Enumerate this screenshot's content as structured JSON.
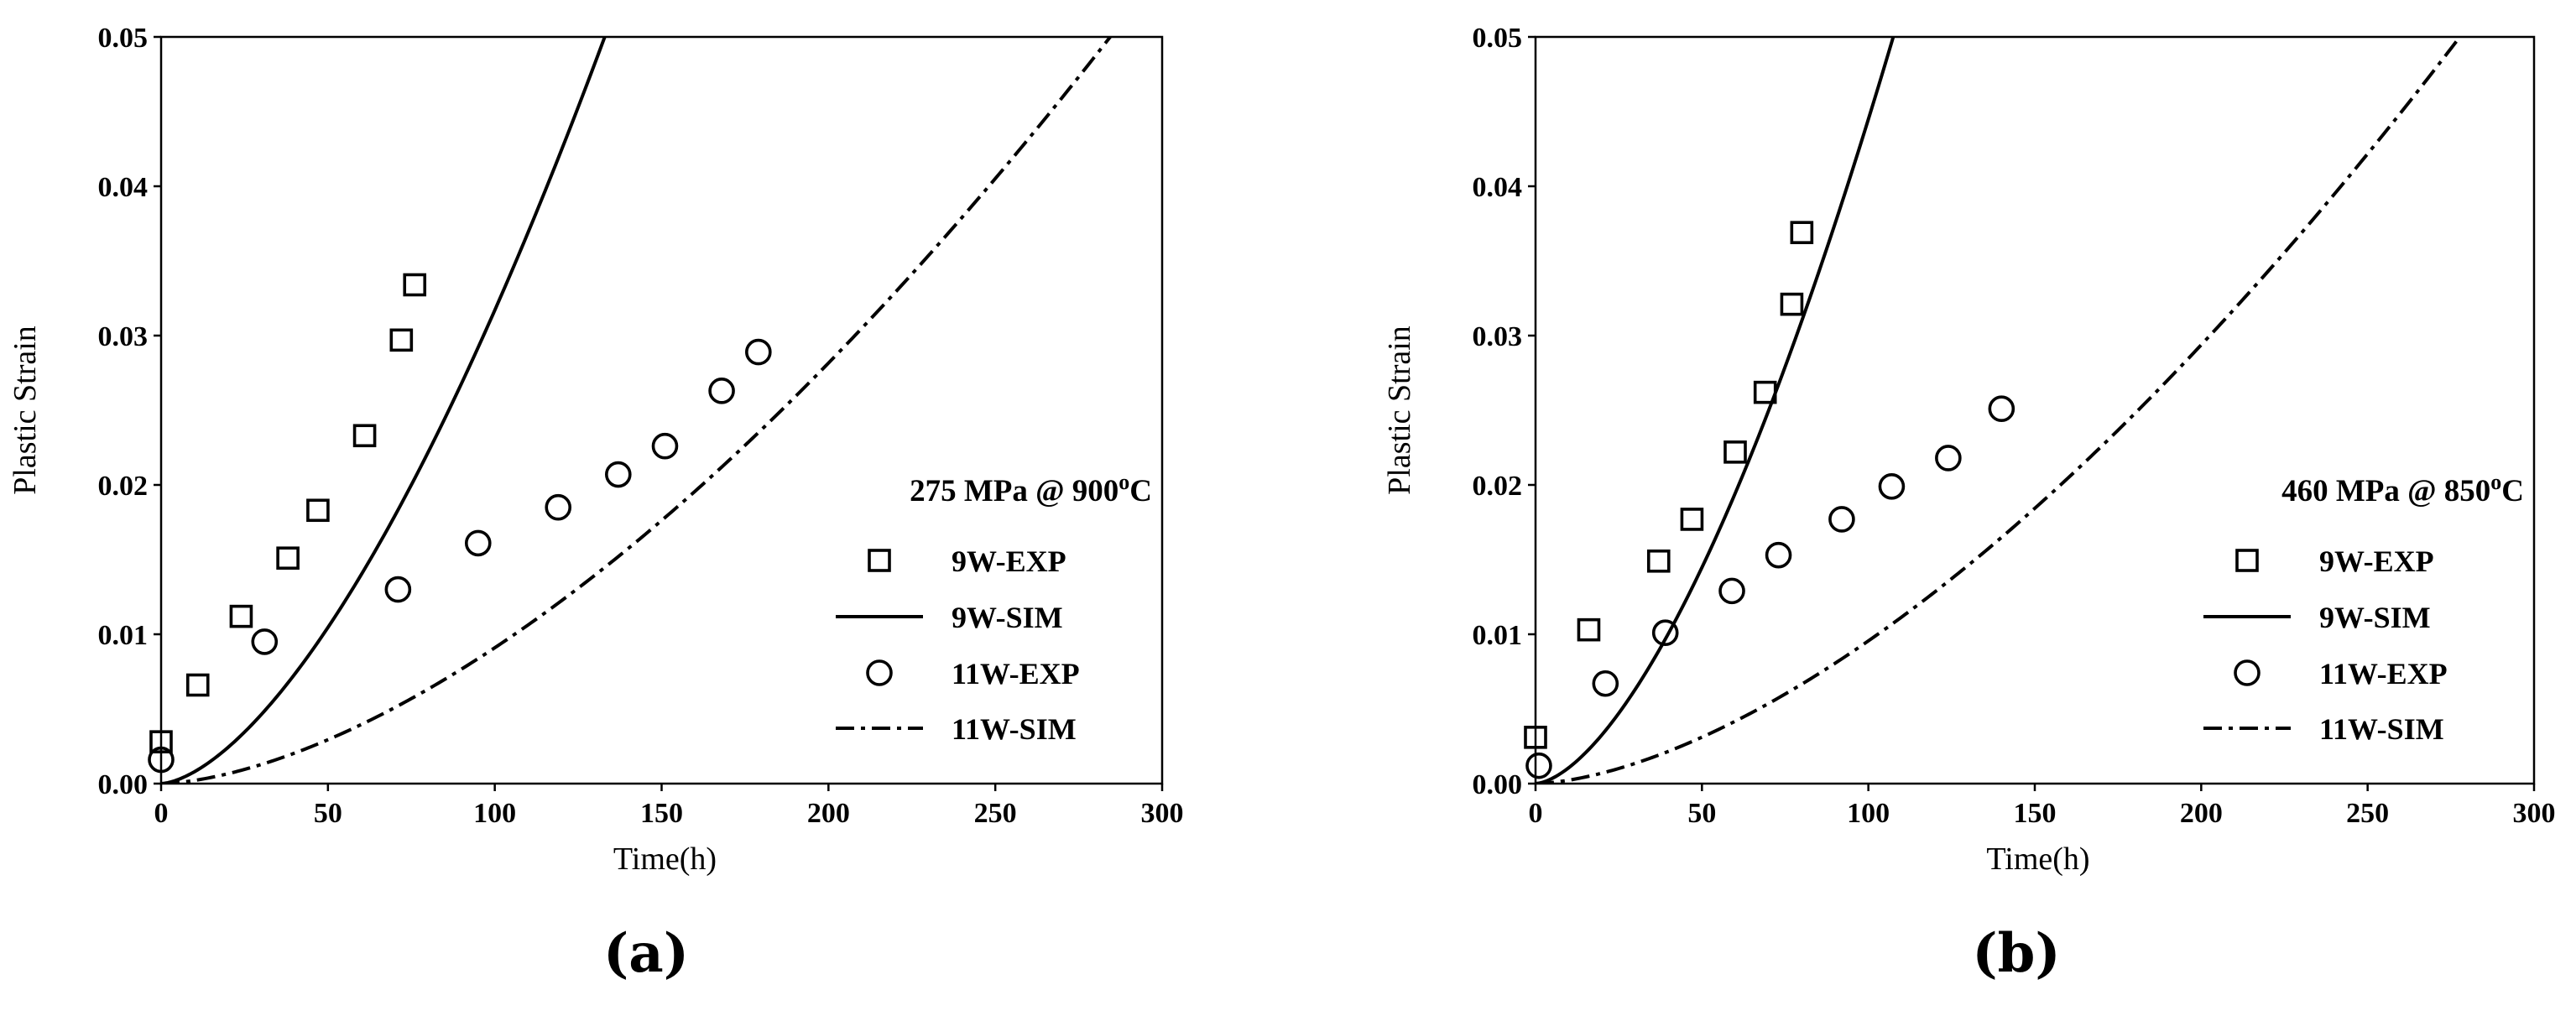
{
  "chart_data": [
    {
      "type": "scatter",
      "panel_label": "(a)",
      "title": "275 MPa @ 900",
      "title_sup": "o",
      "title_unit": "C",
      "xlabel": "Time(h)",
      "ylabel": "Plastic Strain",
      "xlim": [
        0,
        300
      ],
      "ylim": [
        0,
        0.05
      ],
      "xticks": [
        "0",
        "50",
        "100",
        "150",
        "200",
        "250",
        "300"
      ],
      "yticks": [
        "0.00",
        "0.01",
        "0.02",
        "0.03",
        "0.04",
        "0.05"
      ],
      "legend_position": "center-right",
      "series": [
        {
          "name": "9W-EXP",
          "kind": "marker",
          "marker": "square",
          "x": [
            0,
            11,
            24,
            38,
            47,
            61,
            72,
            76
          ],
          "y": [
            0.0028,
            0.0066,
            0.0112,
            0.0151,
            0.0183,
            0.0233,
            0.0297,
            0.0334
          ]
        },
        {
          "name": "9W-SIM",
          "kind": "line",
          "dash": "solid",
          "a": 2e-05,
          "n": 1.6,
          "x_max": 300
        },
        {
          "name": "11W-EXP",
          "kind": "marker",
          "marker": "circle",
          "x": [
            0,
            31,
            71,
            95,
            119,
            137,
            151,
            168,
            179
          ],
          "y": [
            0.0016,
            0.0095,
            0.013,
            0.0161,
            0.0185,
            0.0207,
            0.0226,
            0.0263,
            0.0289
          ]
        },
        {
          "name": "11W-SIM",
          "kind": "line",
          "dash": "dashdot",
          "a": 5e-06,
          "n": 1.63,
          "x_max": 300
        }
      ]
    },
    {
      "type": "scatter",
      "panel_label": "(b)",
      "title": "460 MPa @ 850",
      "title_sup": "o",
      "title_unit": "C",
      "xlabel": "Time(h)",
      "ylabel": "Plastic Strain",
      "xlim": [
        0,
        300
      ],
      "ylim": [
        0,
        0.05
      ],
      "xticks": [
        "0",
        "50",
        "100",
        "150",
        "200",
        "250",
        "300"
      ],
      "yticks": [
        "0.00",
        "0.01",
        "0.02",
        "0.03",
        "0.04",
        "0.05"
      ],
      "legend_position": "center-right",
      "series": [
        {
          "name": "9W-EXP",
          "kind": "marker",
          "marker": "square",
          "x": [
            0,
            16,
            37,
            47,
            60,
            69,
            77,
            80
          ],
          "y": [
            0.0031,
            0.0103,
            0.0149,
            0.0177,
            0.0222,
            0.0262,
            0.0321,
            0.0369
          ]
        },
        {
          "name": "9W-SIM",
          "kind": "line",
          "dash": "solid",
          "a": 2.56e-05,
          "n": 1.62,
          "x_max": 300
        },
        {
          "name": "11W-EXP",
          "kind": "marker",
          "marker": "circle",
          "x": [
            1,
            21,
            39,
            59,
            73,
            92,
            107,
            124,
            140
          ],
          "y": [
            0.0012,
            0.0067,
            0.0101,
            0.0129,
            0.0153,
            0.0177,
            0.0199,
            0.0218,
            0.0251
          ]
        },
        {
          "name": "11W-SIM",
          "kind": "line",
          "dash": "dashdot",
          "a": 5.5e-06,
          "n": 1.62,
          "x_max": 300
        }
      ]
    }
  ]
}
